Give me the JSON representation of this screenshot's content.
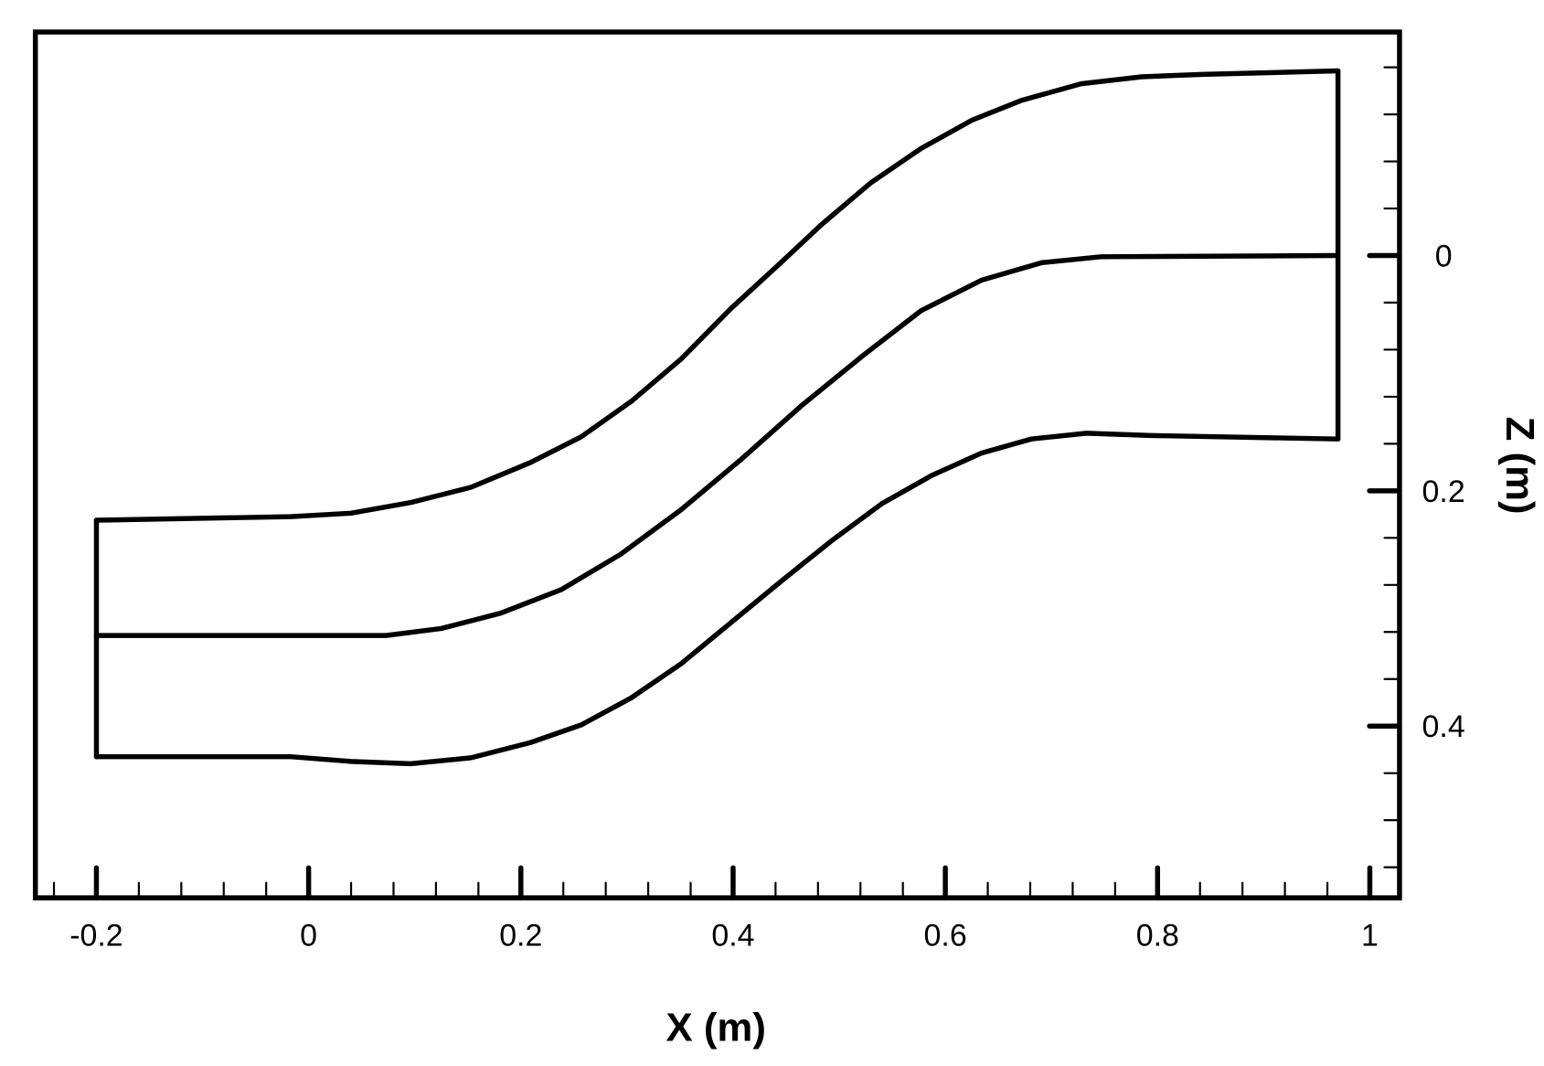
{
  "chart_data": {
    "type": "line",
    "title": "",
    "xlabel": "X (m)",
    "ylabel": "Z (m)",
    "xlim": [
      -0.2575,
      1.028
    ],
    "ylim": [
      -0.19,
      0.546
    ],
    "y_inverted": true,
    "y_axis_side": "right",
    "grid": false,
    "legend": "none",
    "line_color": "#000000",
    "x_ticks": [
      -0.2,
      0,
      0.2,
      0.4,
      0.6,
      0.8,
      1
    ],
    "x_tick_labels": [
      "-0.2",
      "0",
      "0.2",
      "0.4",
      "0.6",
      "0.8",
      "1"
    ],
    "x_minor_step": 0.04,
    "y_ticks": [
      0,
      0.2,
      0.4
    ],
    "y_tick_labels": [
      "0",
      "0.2",
      "0.4"
    ],
    "y_minor_step": 0.04,
    "series": [
      {
        "x": [
          -0.2,
          -0.017,
          0.04,
          0.096,
          0.153,
          0.209,
          0.257,
          0.304,
          0.351,
          0.398,
          0.445,
          0.483,
          0.53,
          0.577,
          0.625,
          0.672,
          0.728,
          0.785,
          0.842,
          0.97
        ],
        "y": [
          0.225,
          0.222,
          0.219,
          0.21,
          0.197,
          0.176,
          0.154,
          0.124,
          0.088,
          0.045,
          0.006,
          -0.026,
          -0.062,
          -0.091,
          -0.115,
          -0.132,
          -0.146,
          -0.152,
          -0.154,
          -0.157
        ]
      },
      {
        "x": [
          -0.2,
          0.073,
          0.125,
          0.181,
          0.238,
          0.294,
          0.351,
          0.408,
          0.464,
          0.521,
          0.577,
          0.634,
          0.691,
          0.747,
          0.967
        ],
        "y": [
          0.323,
          0.323,
          0.317,
          0.304,
          0.284,
          0.254,
          0.216,
          0.173,
          0.128,
          0.086,
          0.047,
          0.021,
          0.006,
          0.001,
          0.0
        ]
      },
      {
        "x": [
          -0.2,
          -0.017,
          0.04,
          0.096,
          0.153,
          0.209,
          0.257,
          0.304,
          0.351,
          0.398,
          0.445,
          0.492,
          0.54,
          0.587,
          0.634,
          0.681,
          0.733,
          0.794,
          0.97
        ],
        "y": [
          0.426,
          0.426,
          0.43,
          0.432,
          0.427,
          0.414,
          0.399,
          0.376,
          0.347,
          0.312,
          0.277,
          0.243,
          0.211,
          0.187,
          0.168,
          0.156,
          0.151,
          0.153,
          0.156
        ]
      },
      {
        "x": [
          -0.2,
          -0.2
        ],
        "y": [
          0.225,
          0.426
        ]
      },
      {
        "x": [
          0.97,
          0.97
        ],
        "y": [
          -0.157,
          0.156
        ]
      }
    ]
  }
}
